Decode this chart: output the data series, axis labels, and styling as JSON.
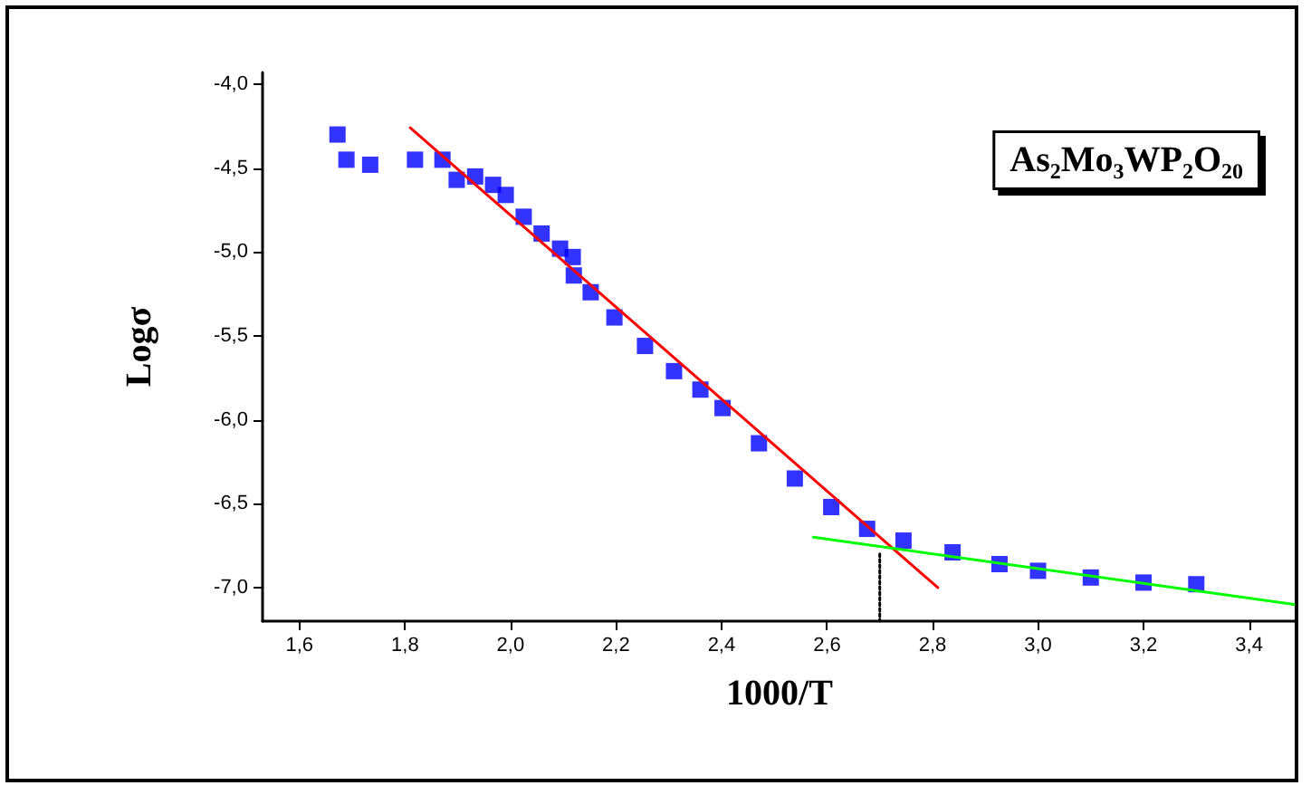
{
  "chart_data": {
    "type": "scatter",
    "xlabel": "1000/T",
    "ylabel": "Logσ",
    "annotations": [
      "As₂Mo₃WP₂O₂₀"
    ],
    "xlim": [
      1.53,
      3.49
    ],
    "ylim": [
      -7.2,
      -3.93
    ],
    "xticks": [
      {
        "value": 1.6,
        "label": "1,6"
      },
      {
        "value": 1.8,
        "label": "1,8"
      },
      {
        "value": 2.0,
        "label": "2,0"
      },
      {
        "value": 2.2,
        "label": "2,2"
      },
      {
        "value": 2.4,
        "label": "2,4"
      },
      {
        "value": 2.6,
        "label": "2,6"
      },
      {
        "value": 2.8,
        "label": "2,8"
      },
      {
        "value": 3.0,
        "label": "3,0"
      },
      {
        "value": 3.2,
        "label": "3,2"
      },
      {
        "value": 3.4,
        "label": "3,4"
      }
    ],
    "yticks": [
      {
        "value": -7.0,
        "label": "-7,0"
      },
      {
        "value": -6.5,
        "label": "-6,5"
      },
      {
        "value": -6.0,
        "label": "-6,0"
      },
      {
        "value": -5.5,
        "label": "-5,5"
      },
      {
        "value": -5.0,
        "label": "-5,0"
      },
      {
        "value": -4.5,
        "label": "-4,5"
      },
      {
        "value": -4.0,
        "label": "-4,0"
      }
    ],
    "grid": false,
    "series": [
      {
        "marker": "square",
        "color": "#0000ff",
        "x": [
          1.672,
          1.689,
          1.734,
          1.819,
          1.871,
          1.898,
          1.933,
          1.967,
          1.991,
          2.025,
          2.059,
          2.094,
          2.118,
          2.12,
          2.152,
          2.197,
          2.255,
          2.31,
          2.36,
          2.402,
          2.471,
          2.539,
          2.608,
          2.676,
          2.745,
          2.838,
          2.927,
          3.0,
          3.1,
          3.2,
          3.3
        ],
        "values": [
          -4.3,
          -4.45,
          -4.48,
          -4.45,
          -4.45,
          -4.57,
          -4.55,
          -4.6,
          -4.66,
          -4.79,
          -4.89,
          -4.98,
          -5.03,
          -5.14,
          -5.24,
          -5.39,
          -5.56,
          -5.71,
          -5.82,
          -5.93,
          -6.14,
          -6.35,
          -6.52,
          -6.65,
          -6.72,
          -6.79,
          -6.86,
          -6.9,
          -6.94,
          -6.97,
          -6.98
        ]
      },
      {
        "type": "line",
        "marker": "none",
        "line_style": "solid",
        "color": "#ff0000",
        "x": [
          1.81,
          2.81
        ],
        "values": [
          -4.26,
          -7.0
        ]
      },
      {
        "type": "line",
        "marker": "none",
        "line_style": "solid",
        "color": "#00ff00",
        "x": [
          2.574,
          3.485
        ],
        "values": [
          -6.7,
          -7.1
        ]
      },
      {
        "type": "line",
        "marker": "none",
        "line_style": "dotted",
        "color": "#000000",
        "x": [
          2.7,
          2.7
        ],
        "values": [
          -6.8,
          -7.2
        ]
      }
    ]
  }
}
